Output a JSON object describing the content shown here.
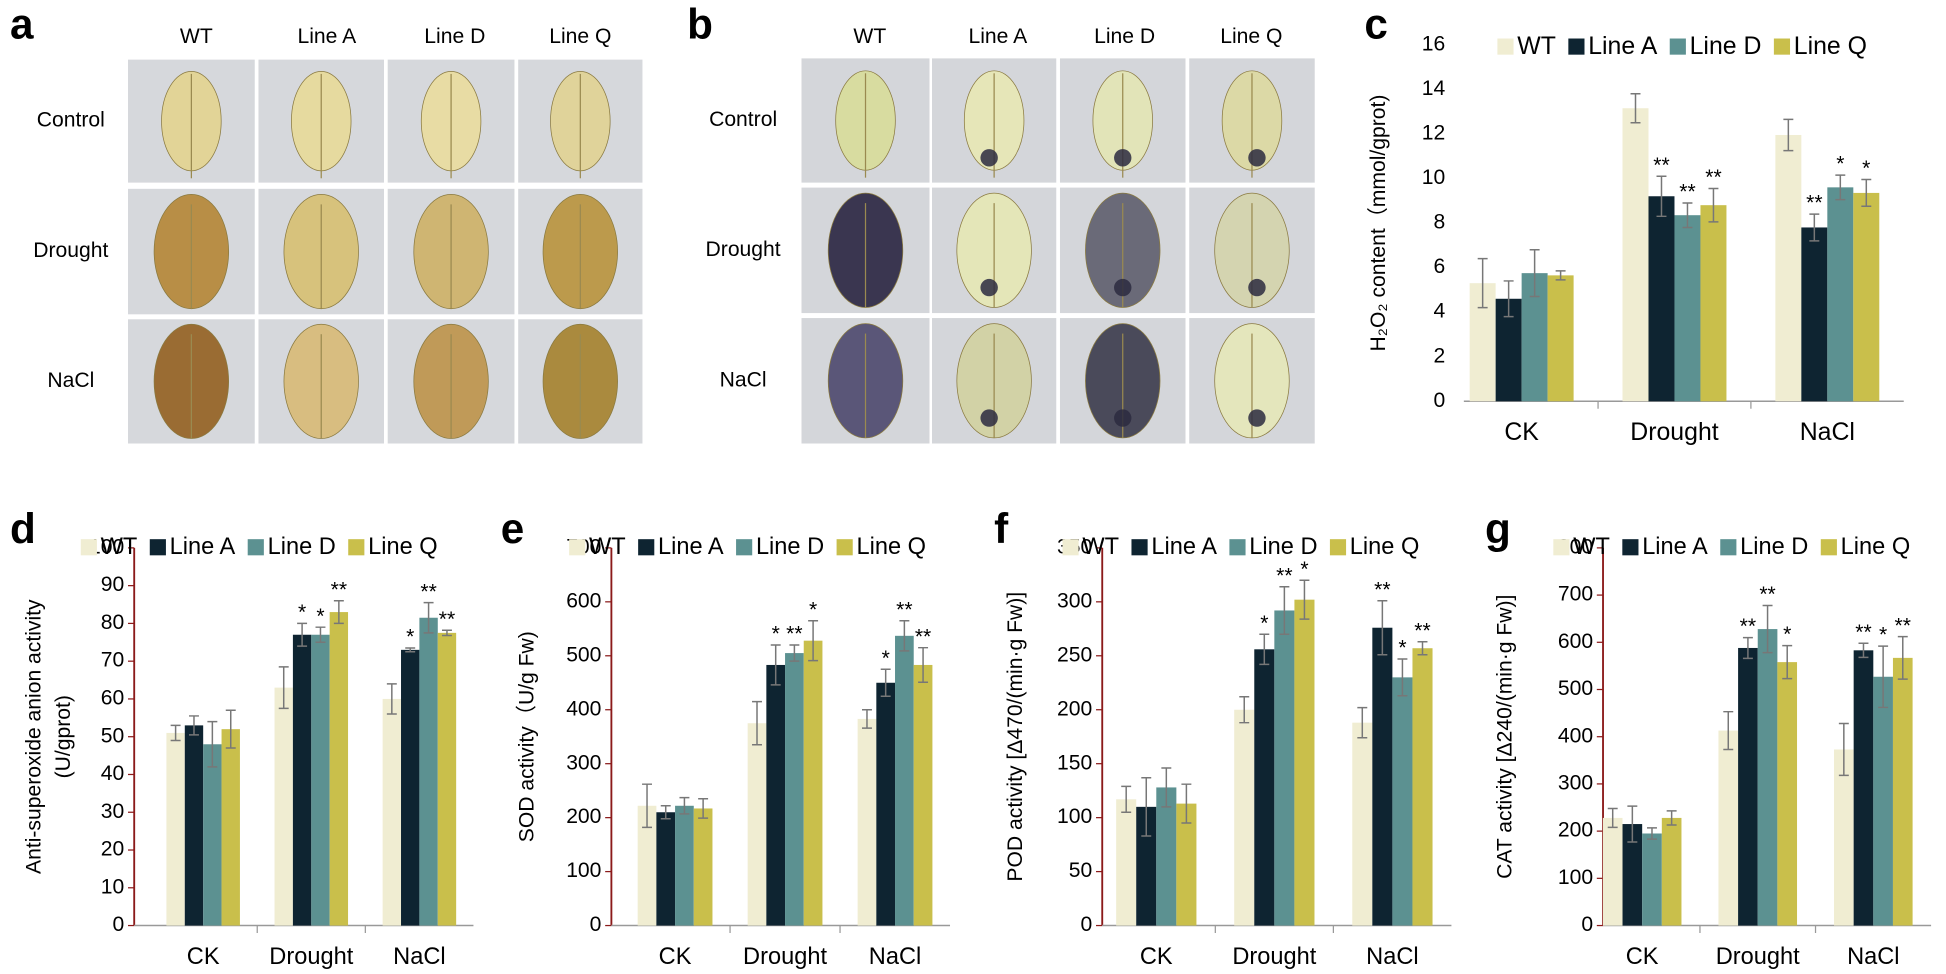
{
  "photo_panels": [
    {
      "panel": "a",
      "columns": [
        "WT",
        "Line A",
        "Line D",
        "Line Q"
      ],
      "rows": [
        "Control",
        "Drought",
        "NaCl"
      ]
    },
    {
      "panel": "b",
      "columns": [
        "WT",
        "Line A",
        "Line D",
        "Line Q"
      ],
      "rows": [
        "Control",
        "Drought",
        "NaCl"
      ]
    }
  ],
  "chart_data": [
    {
      "type": "bar",
      "panel": "c",
      "ylabel": "H₂O₂ content（mmol/gprot)",
      "legend": "top",
      "categories": [
        "CK",
        "Drought",
        "NaCl"
      ],
      "ylim": [
        0,
        16
      ],
      "yticks": [
        0,
        2,
        4,
        6,
        8,
        10,
        12,
        14,
        16
      ],
      "series": [
        {
          "name": "WT",
          "color": "#f0edd2",
          "values": [
            5.3,
            13.15,
            11.95
          ],
          "errors": [
            1.1,
            0.65,
            0.7
          ],
          "significance": [
            null,
            null,
            null
          ]
        },
        {
          "name": "Line A",
          "color": "#0e2431",
          "values": [
            4.6,
            9.2,
            7.8
          ],
          "errors": [
            0.8,
            0.9,
            0.6
          ],
          "significance": [
            null,
            "**",
            "**"
          ]
        },
        {
          "name": "Line D",
          "color": "#5c9191",
          "values": [
            5.75,
            8.35,
            9.6
          ],
          "errors": [
            1.05,
            0.55,
            0.55
          ],
          "significance": [
            null,
            "**",
            "*"
          ]
        },
        {
          "name": "Line Q",
          "color": "#c9bf4b",
          "values": [
            5.65,
            8.8,
            9.35
          ],
          "errors": [
            0.2,
            0.75,
            0.6
          ],
          "significance": [
            null,
            "**",
            "*"
          ]
        }
      ]
    },
    {
      "type": "bar",
      "panel": "d",
      "ylabel": [
        "Anti-superoxide anion activity",
        "(U/gprot)"
      ],
      "legend": "top",
      "categories": [
        "CK",
        "Drought",
        "NaCl"
      ],
      "ylim": [
        0,
        100
      ],
      "yticks": [
        0,
        10,
        20,
        30,
        40,
        50,
        60,
        70,
        80,
        90,
        100
      ],
      "series": [
        {
          "name": "WT",
          "color": "#f0edd2",
          "values": [
            51,
            63,
            60
          ],
          "errors": [
            2,
            5.5,
            4
          ],
          "significance": [
            null,
            null,
            null
          ]
        },
        {
          "name": "Line A",
          "color": "#0e2431",
          "values": [
            53,
            77,
            73
          ],
          "errors": [
            2.5,
            3,
            0.5
          ],
          "significance": [
            null,
            "*",
            "*"
          ]
        },
        {
          "name": "Line D",
          "color": "#5c9191",
          "values": [
            48,
            77,
            81.5
          ],
          "errors": [
            6,
            2,
            4
          ],
          "significance": [
            null,
            "*",
            "**"
          ]
        },
        {
          "name": "Line Q",
          "color": "#c9bf4b",
          "values": [
            52,
            83,
            77.5
          ],
          "errors": [
            5,
            3,
            0.7
          ],
          "significance": [
            null,
            "**",
            "**"
          ]
        }
      ]
    },
    {
      "type": "bar",
      "panel": "e",
      "ylabel": "SOD activity（U/g Fw)",
      "legend": "top",
      "categories": [
        "CK",
        "Drought",
        "NaCl"
      ],
      "ylim": [
        0,
        700
      ],
      "yticks": [
        0,
        100,
        200,
        300,
        400,
        500,
        600,
        700
      ],
      "series": [
        {
          "name": "WT",
          "color": "#f0edd2",
          "values": [
            222,
            375,
            383
          ],
          "errors": [
            40,
            40,
            17
          ],
          "significance": [
            null,
            null,
            null
          ]
        },
        {
          "name": "Line A",
          "color": "#0e2431",
          "values": [
            210,
            483,
            450
          ],
          "errors": [
            12,
            37,
            25
          ],
          "significance": [
            null,
            "*",
            "*"
          ]
        },
        {
          "name": "Line D",
          "color": "#5c9191",
          "values": [
            222,
            505,
            537
          ],
          "errors": [
            15,
            15,
            28
          ],
          "significance": [
            null,
            "**",
            "**"
          ]
        },
        {
          "name": "Line Q",
          "color": "#c9bf4b",
          "values": [
            217,
            528,
            483
          ],
          "errors": [
            18,
            37,
            32
          ],
          "significance": [
            null,
            "*",
            "**"
          ]
        }
      ]
    },
    {
      "type": "bar",
      "panel": "f",
      "ylabel": "POD activity [Δ470/(min·g Fw)]",
      "legend": "top",
      "categories": [
        "CK",
        "Drought",
        "NaCl"
      ],
      "ylim": [
        0,
        350
      ],
      "yticks": [
        0,
        50,
        100,
        150,
        200,
        250,
        300,
        350
      ],
      "series": [
        {
          "name": "WT",
          "color": "#f0edd2",
          "values": [
            117,
            200,
            188
          ],
          "errors": [
            12,
            12,
            14
          ],
          "significance": [
            null,
            null,
            null
          ]
        },
        {
          "name": "Line A",
          "color": "#0e2431",
          "values": [
            110,
            256,
            276
          ],
          "errors": [
            27,
            14,
            25
          ],
          "significance": [
            null,
            "*",
            "**"
          ]
        },
        {
          "name": "Line D",
          "color": "#5c9191",
          "values": [
            128,
            292,
            230
          ],
          "errors": [
            18,
            22,
            17
          ],
          "significance": [
            null,
            "**",
            "*"
          ]
        },
        {
          "name": "Line Q",
          "color": "#c9bf4b",
          "values": [
            113,
            302,
            257
          ],
          "errors": [
            18,
            18,
            6
          ],
          "significance": [
            null,
            "*",
            "**"
          ]
        }
      ]
    },
    {
      "type": "bar",
      "panel": "g",
      "ylabel": "CAT activity [Δ240/(min·g Fw)]",
      "legend": "top",
      "categories": [
        "CK",
        "Drought",
        "NaCl"
      ],
      "ylim": [
        0,
        800
      ],
      "yticks": [
        0,
        100,
        200,
        300,
        400,
        500,
        600,
        700,
        800
      ],
      "series": [
        {
          "name": "WT",
          "color": "#f0edd2",
          "values": [
            228,
            413,
            373
          ],
          "errors": [
            20,
            40,
            55
          ],
          "significance": [
            null,
            null,
            null
          ]
        },
        {
          "name": "Line A",
          "color": "#0e2431",
          "values": [
            215,
            588,
            583
          ],
          "errors": [
            38,
            22,
            15
          ],
          "significance": [
            null,
            "**",
            "**"
          ]
        },
        {
          "name": "Line D",
          "color": "#5c9191",
          "values": [
            195,
            628,
            527
          ],
          "errors": [
            12,
            50,
            65
          ],
          "significance": [
            null,
            "**",
            "*"
          ]
        },
        {
          "name": "Line Q",
          "color": "#c9bf4b",
          "values": [
            228,
            558,
            567
          ],
          "errors": [
            15,
            35,
            45
          ],
          "significance": [
            null,
            "*",
            "**"
          ]
        }
      ]
    }
  ]
}
